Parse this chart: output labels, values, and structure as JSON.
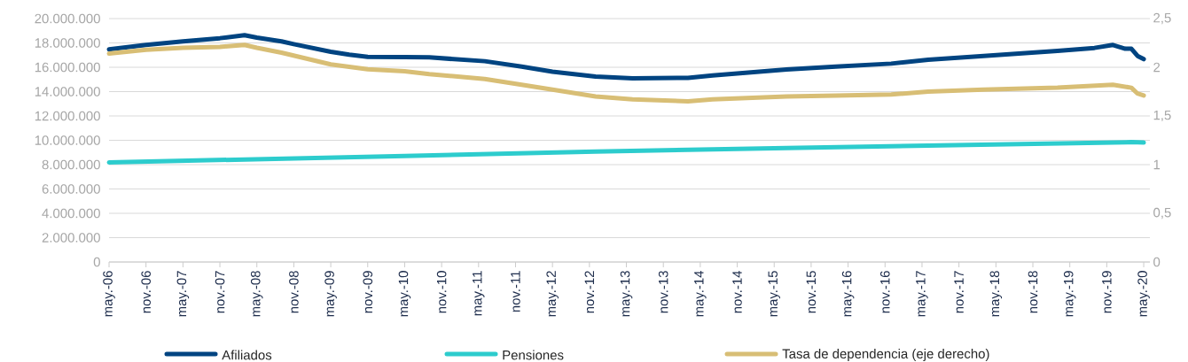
{
  "chart_data": {
    "type": "line",
    "xlim": [
      "2006-05",
      "2020-06"
    ],
    "xticks": [
      {
        "value": "2006-05",
        "label": "may.-06"
      },
      {
        "value": "2006-11",
        "label": "nov.-06"
      },
      {
        "value": "2007-05",
        "label": "may.-07"
      },
      {
        "value": "2007-11",
        "label": "nov.-07"
      },
      {
        "value": "2008-05",
        "label": "may.-08"
      },
      {
        "value": "2008-11",
        "label": "nov.-08"
      },
      {
        "value": "2009-05",
        "label": "may.-09"
      },
      {
        "value": "2009-11",
        "label": "nov.-09"
      },
      {
        "value": "2010-05",
        "label": "may.-10"
      },
      {
        "value": "2010-11",
        "label": "nov.-10"
      },
      {
        "value": "2011-05",
        "label": "may.-11"
      },
      {
        "value": "2011-11",
        "label": "nov.-11"
      },
      {
        "value": "2012-05",
        "label": "may.-12"
      },
      {
        "value": "2012-11",
        "label": "nov.-12"
      },
      {
        "value": "2013-05",
        "label": "may.-13"
      },
      {
        "value": "2013-11",
        "label": "nov.-13"
      },
      {
        "value": "2014-05",
        "label": "may.-14"
      },
      {
        "value": "2014-11",
        "label": "nov.-14"
      },
      {
        "value": "2015-05",
        "label": "may.-15"
      },
      {
        "value": "2015-11",
        "label": "nov.-15"
      },
      {
        "value": "2016-05",
        "label": "may.-16"
      },
      {
        "value": "2016-11",
        "label": "nov.-16"
      },
      {
        "value": "2017-05",
        "label": "may.-17"
      },
      {
        "value": "2017-11",
        "label": "nov.-17"
      },
      {
        "value": "2018-05",
        "label": "may.-18"
      },
      {
        "value": "2018-11",
        "label": "nov.-18"
      },
      {
        "value": "2019-05",
        "label": "may.-19"
      },
      {
        "value": "2019-11",
        "label": "nov.-19"
      },
      {
        "value": "2020-05",
        "label": "may.-20"
      }
    ],
    "ylim": [
      0,
      20000000
    ],
    "yticks": [
      {
        "value": 0,
        "label": "0"
      },
      {
        "value": 2000000,
        "label": "2.000.000"
      },
      {
        "value": 4000000,
        "label": "4.000.000"
      },
      {
        "value": 6000000,
        "label": "6.000.000"
      },
      {
        "value": 8000000,
        "label": "8.000.000"
      },
      {
        "value": 10000000,
        "label": "10.000.000"
      },
      {
        "value": 12000000,
        "label": "12.000.000"
      },
      {
        "value": 14000000,
        "label": "14.000.000"
      },
      {
        "value": 16000000,
        "label": "16.000.000"
      },
      {
        "value": 18000000,
        "label": "18.000.000"
      },
      {
        "value": 20000000,
        "label": "20.000.000"
      }
    ],
    "y2lim": [
      0,
      2.5
    ],
    "y2ticks": [
      0,
      {
        "value": 0.5,
        "label": "0,5"
      },
      1,
      {
        "value": 1.5,
        "label": "1,5"
      },
      2,
      {
        "value": 2.5,
        "label": "2,5"
      }
    ],
    "grid": "y",
    "legend": "bottom",
    "series": [
      {
        "name": "Afiliados",
        "color": "#004481",
        "x": [
          "2006-05",
          "2006-11",
          "2007-05",
          "2007-11",
          "2008-03",
          "2008-05",
          "2008-09",
          "2008-11",
          "2009-05",
          "2009-08",
          "2009-11",
          "2010-05",
          "2010-09",
          "2011-06",
          "2011-12",
          "2012-05",
          "2012-12",
          "2013-06",
          "2014-03",
          "2014-07",
          "2015-07",
          "2016-03",
          "2016-12",
          "2017-06",
          "2018-03",
          "2019-03",
          "2019-09",
          "2019-12",
          "2020-02",
          "2020-03",
          "2020-04",
          "2020-05"
        ],
        "values": [
          17470000,
          17840000,
          18130000,
          18390000,
          18640000,
          18440000,
          18130000,
          17900000,
          17270000,
          17030000,
          16860000,
          16840000,
          16810000,
          16500000,
          16060000,
          15640000,
          15230000,
          15090000,
          15130000,
          15330000,
          15820000,
          16060000,
          16300000,
          16620000,
          16930000,
          17350000,
          17590000,
          17830000,
          17520000,
          17520000,
          16930000,
          16670000
        ]
      },
      {
        "name": "Pensiones",
        "color": "#2dcccd",
        "x": [
          "2006-05",
          "2010-05",
          "2012-12",
          "2015-07",
          "2017-06",
          "2020-03",
          "2020-05"
        ],
        "values": [
          8180000,
          8710000,
          9080000,
          9370000,
          9560000,
          9850000,
          9810000
        ]
      },
      {
        "name": "Tasa de dependencia (eje derecho)",
        "color": "#d8be75",
        "axis": "y2",
        "x": [
          "2006-05",
          "2006-11",
          "2007-05",
          "2007-11",
          "2008-03",
          "2008-05",
          "2008-09",
          "2009-05",
          "2009-11",
          "2010-05",
          "2010-09",
          "2011-06",
          "2011-12",
          "2012-05",
          "2012-12",
          "2013-06",
          "2014-03",
          "2014-07",
          "2015-07",
          "2016-03",
          "2016-12",
          "2017-06",
          "2018-03",
          "2019-03",
          "2019-12",
          "2020-03",
          "2020-04",
          "2020-05"
        ],
        "values": [
          2.14,
          2.18,
          2.2,
          2.21,
          2.23,
          2.2,
          2.15,
          2.03,
          1.98,
          1.96,
          1.93,
          1.88,
          1.82,
          1.77,
          1.7,
          1.67,
          1.65,
          1.67,
          1.7,
          1.71,
          1.72,
          1.75,
          1.77,
          1.79,
          1.82,
          1.79,
          1.73,
          1.71
        ]
      }
    ]
  }
}
